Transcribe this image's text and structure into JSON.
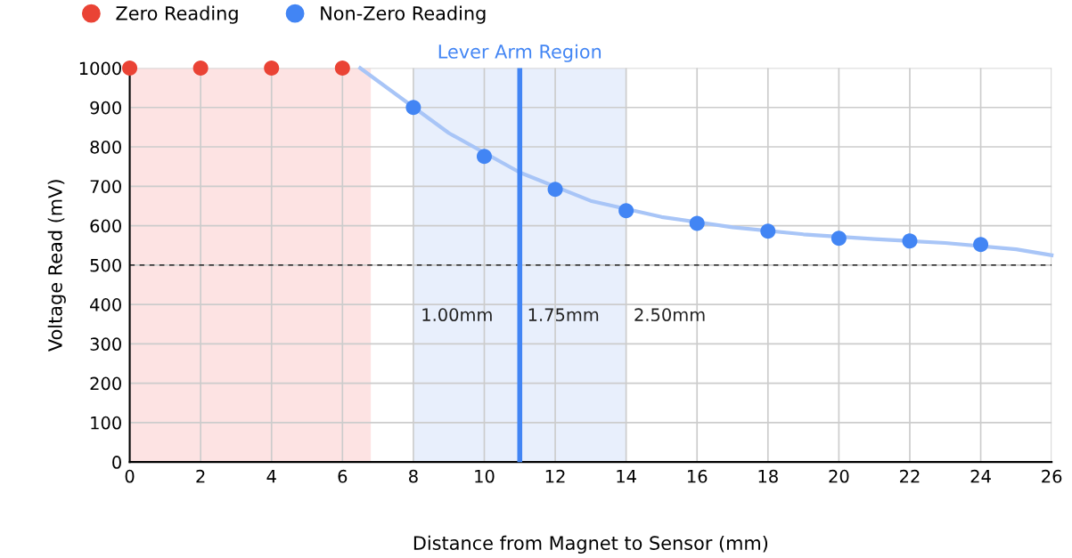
{
  "chart_data": {
    "type": "scatter",
    "xlabel": "Distance from Magnet to Sensor (mm)",
    "ylabel": "Voltage Read (mV)",
    "xlim": [
      0,
      26
    ],
    "xticks": [
      0,
      2,
      4,
      6,
      8,
      10,
      12,
      14,
      16,
      18,
      20,
      22,
      24,
      26
    ],
    "ylim": [
      0,
      1000
    ],
    "yticks": [
      0,
      100,
      200,
      300,
      400,
      500,
      600,
      700,
      800,
      900,
      1000
    ],
    "grid": true,
    "legend": "top left",
    "marker": "circle",
    "series": [
      {
        "name": "Zero Reading",
        "color": "#ea4335",
        "x": [
          0,
          2,
          4,
          6
        ],
        "values": [
          1000,
          1000,
          1000,
          1000
        ]
      },
      {
        "name": "Non-Zero Reading",
        "color": "#4285f4",
        "x": [
          8,
          10,
          12,
          14,
          16,
          18,
          20,
          22,
          24
        ],
        "values": [
          900,
          776,
          692,
          638,
          606,
          586,
          568,
          561,
          552
        ]
      },
      {
        "type": "line",
        "color": "#a8c5f7",
        "marker": "none",
        "x": [
          6.5,
          9,
          11,
          13,
          15,
          17,
          19,
          21,
          23,
          25,
          26
        ],
        "values": [
          1000,
          835,
          735,
          663,
          622,
          596,
          578,
          566,
          556,
          540,
          525
        ]
      }
    ],
    "bands": [
      {
        "axis": "x",
        "from": 0,
        "to": 6.8,
        "color": "#fde3e3"
      },
      {
        "axis": "x",
        "from": 8,
        "to": 14,
        "color": "#e8effc"
      }
    ],
    "ref_lines": [
      {
        "axis": "y",
        "value": 500,
        "color": "#000000",
        "line_style": "dashed"
      },
      {
        "axis": "x",
        "value": 11,
        "label": "Lever Arm Region",
        "color": "#4285f4",
        "line_style": "solid"
      }
    ],
    "annotations": [
      {
        "text": "1.00mm",
        "x": 8,
        "y": 370
      },
      {
        "text": "1.75mm",
        "x": 11,
        "y": 370
      },
      {
        "text": "2.50mm",
        "x": 14,
        "y": 370
      }
    ]
  }
}
